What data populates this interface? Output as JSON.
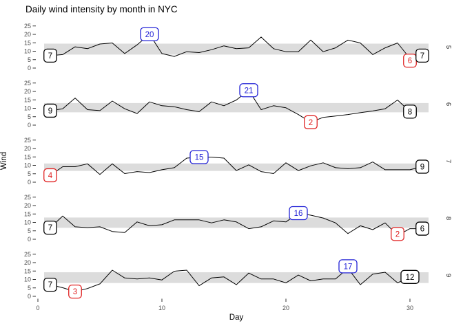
{
  "title": "Daily wind intensity by month in NYC",
  "x_axis": {
    "label": "Day",
    "ticks": [
      "0",
      "10",
      "20",
      "30"
    ]
  },
  "y_axis": {
    "label": "Wind",
    "ticks": [
      "25",
      "20",
      "15",
      "10",
      "5",
      "0"
    ]
  },
  "facet_strip_labels": [
    "5",
    "6",
    "7",
    "8",
    "9"
  ],
  "colors": {
    "line": "#000000",
    "band": "#DCDCDC",
    "endpoint_label": "#000000",
    "max_label": "#2121D6",
    "min_label": "#E02222",
    "tick_text": "#4D4D4D",
    "tick_mark": "#333333",
    "strip_text": "#1A1A1A",
    "label_fill": "#FFFFFF"
  },
  "chart_data": {
    "type": "line",
    "title": "Daily wind intensity by month in NYC",
    "xlabel": "Day",
    "ylabel": "Wind",
    "facet_variable": "Month",
    "facet_label_side": "right",
    "xlim": [
      0,
      31
    ],
    "ylim": [
      0,
      25
    ],
    "xticks": [
      0,
      10,
      20,
      30
    ],
    "yticks": [
      25,
      20,
      15,
      10,
      5,
      0
    ],
    "grid": "off",
    "band_meaning": "light-gray horizontal band per facet spanning the middle (interquartile) wind range",
    "facets": [
      {
        "strip": "5",
        "band": [
          8.0,
          14.5
        ],
        "days": "1-31",
        "values": [
          7.4,
          8.0,
          12.6,
          11.5,
          14.3,
          14.9,
          8.6,
          13.8,
          20.1,
          8.6,
          6.9,
          9.7,
          9.2,
          10.9,
          13.2,
          11.5,
          12.0,
          18.4,
          11.5,
          9.7,
          9.7,
          16.6,
          9.7,
          12.0,
          16.6,
          14.9,
          8.0,
          12.0,
          14.9,
          5.7,
          7.4
        ],
        "labels": [
          {
            "role": "first",
            "day": 1,
            "value": 7.4,
            "text": "7",
            "dy": 0
          },
          {
            "role": "max",
            "day": 9,
            "value": 20.1,
            "text": "20",
            "dy": 0
          },
          {
            "role": "min",
            "day": 30,
            "value": 5.7,
            "text": "6",
            "dy": -1.3
          },
          {
            "role": "last",
            "day": 31,
            "value": 7.4,
            "text": "7",
            "dy": 0
          }
        ]
      },
      {
        "strip": "6",
        "band": [
          7.6,
          13.1
        ],
        "days": "1-30",
        "values": [
          8.6,
          9.7,
          16.1,
          9.2,
          8.6,
          14.3,
          9.7,
          6.9,
          13.8,
          11.5,
          10.9,
          9.2,
          8.0,
          13.8,
          11.5,
          14.9,
          20.7,
          9.2,
          11.5,
          10.3,
          6.3,
          1.7,
          4.6,
          5.4,
          6.3,
          7.4,
          8.4,
          9.7,
          14.9,
          8.0
        ],
        "labels": [
          {
            "role": "first",
            "day": 1,
            "value": 8.6,
            "text": "9",
            "dy": 0
          },
          {
            "role": "max",
            "day": 17,
            "value": 20.7,
            "text": "21",
            "dy": 0
          },
          {
            "role": "min",
            "day": 22,
            "value": 1.7,
            "text": "2",
            "dy": 0
          },
          {
            "role": "last",
            "day": 30,
            "value": 8.0,
            "text": "8",
            "dy": 0
          }
        ]
      },
      {
        "strip": "7",
        "band": [
          6.7,
          11.1
        ],
        "days": "1-31",
        "values": [
          4.1,
          9.2,
          9.2,
          10.9,
          4.6,
          10.9,
          5.1,
          6.3,
          5.7,
          7.4,
          8.6,
          14.3,
          14.9,
          14.9,
          14.3,
          6.9,
          10.3,
          6.3,
          5.1,
          11.5,
          6.9,
          9.7,
          11.5,
          8.6,
          8.0,
          8.6,
          12.0,
          7.4,
          7.4,
          7.4,
          9.2
        ],
        "labels": [
          {
            "role": "min",
            "day": 1,
            "value": 4.1,
            "text": "4",
            "dy": 0
          },
          {
            "role": "max",
            "day": 13,
            "value": 14.9,
            "text": "15",
            "dy": 0
          },
          {
            "role": "last",
            "day": 31,
            "value": 9.2,
            "text": "9",
            "dy": 0
          }
        ]
      },
      {
        "strip": "8",
        "band": [
          6.8,
          12.9
        ],
        "days": "1-31",
        "values": [
          6.9,
          13.8,
          7.4,
          6.9,
          7.4,
          4.6,
          4.0,
          10.3,
          8.0,
          8.6,
          11.5,
          11.5,
          11.5,
          9.7,
          11.5,
          10.3,
          6.3,
          7.4,
          10.9,
          10.3,
          15.5,
          14.3,
          12.6,
          9.7,
          3.4,
          8.0,
          5.7,
          9.7,
          2.3,
          6.3,
          6.3
        ],
        "labels": [
          {
            "role": "first",
            "day": 1,
            "value": 6.9,
            "text": "7",
            "dy": 0
          },
          {
            "role": "max",
            "day": 21,
            "value": 15.5,
            "text": "16",
            "dy": 0
          },
          {
            "role": "min",
            "day": 29,
            "value": 2.3,
            "text": "2",
            "dy": 0.8
          },
          {
            "role": "last",
            "day": 31,
            "value": 6.3,
            "text": "6",
            "dy": 0
          }
        ]
      },
      {
        "strip": "9",
        "band": [
          7.9,
          14.3
        ],
        "days": "1-30",
        "values": [
          6.9,
          5.1,
          2.8,
          4.6,
          7.4,
          15.5,
          10.9,
          10.3,
          10.9,
          9.7,
          14.9,
          15.5,
          6.3,
          10.9,
          11.5,
          6.9,
          13.8,
          10.3,
          10.3,
          8.0,
          12.6,
          9.2,
          10.3,
          10.3,
          16.6,
          6.9,
          13.2,
          14.3,
          8.0,
          11.5
        ],
        "labels": [
          {
            "role": "first",
            "day": 1,
            "value": 6.9,
            "text": "7",
            "dy": 0
          },
          {
            "role": "min",
            "day": 3,
            "value": 2.8,
            "text": "3",
            "dy": 0
          },
          {
            "role": "max",
            "day": 25,
            "value": 16.6,
            "text": "17",
            "dy": 1.2
          },
          {
            "role": "last",
            "day": 30,
            "value": 11.5,
            "text": "12",
            "dy": 0
          }
        ]
      }
    ]
  }
}
